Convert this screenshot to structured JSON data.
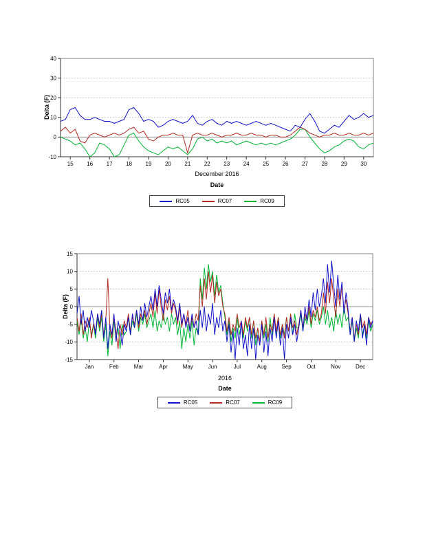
{
  "page": {
    "background": "#ffffff"
  },
  "chart_data": [
    {
      "type": "line",
      "title": "",
      "ylabel": "Delta (F)",
      "xlabel": "Date",
      "x_sublabel": "December 2016",
      "ylim": [
        -10,
        40
      ],
      "yticks": [
        40,
        30,
        20,
        10,
        0,
        -10
      ],
      "xlim": [
        14.5,
        30.5
      ],
      "xtick_values": [
        15,
        16,
        17,
        18,
        19,
        20,
        21,
        22,
        23,
        24,
        25,
        26,
        27,
        28,
        29,
        30
      ],
      "xtick_labels": [
        "15",
        "16",
        "17",
        "18",
        "19",
        "20",
        "21",
        "22",
        "23",
        "24",
        "25",
        "26",
        "27",
        "28",
        "29",
        "30"
      ],
      "grid": "horizontal-dashed",
      "legend_position": "bottom",
      "series": [
        {
          "name": "RC05",
          "color": "#1212c8",
          "x0": 14.5,
          "dx": 0.25,
          "y": [
            8,
            9,
            14,
            15,
            11,
            9,
            9,
            10,
            9,
            8,
            8,
            7,
            8,
            9,
            14,
            15,
            12,
            8,
            9,
            8,
            5,
            6,
            8,
            9,
            8,
            7,
            8,
            11,
            7,
            6,
            8,
            9,
            7,
            6,
            8,
            7,
            8,
            7,
            6,
            7,
            8,
            7,
            6,
            7,
            6,
            5,
            4,
            3,
            6,
            5,
            9,
            12,
            8,
            3,
            2,
            4,
            6,
            5,
            8,
            11,
            9,
            10,
            12,
            10,
            11
          ]
        },
        {
          "name": "RC07",
          "color": "#b22a22",
          "x0": 14.5,
          "dx": 0.25,
          "y": [
            3,
            5,
            2,
            4,
            -2,
            -3,
            1,
            2,
            1,
            0,
            1,
            2,
            1,
            2,
            4,
            5,
            2,
            3,
            -1,
            -2,
            0,
            1,
            1,
            2,
            1,
            1,
            -8,
            1,
            2,
            1,
            1,
            2,
            1,
            0,
            1,
            1,
            2,
            1,
            1,
            2,
            1,
            1,
            0,
            1,
            1,
            0,
            0,
            1,
            3,
            5,
            4,
            2,
            1,
            0,
            1,
            1,
            2,
            1,
            1,
            2,
            1,
            1,
            2,
            1,
            2
          ]
        },
        {
          "name": "RC09",
          "color": "#00b432",
          "x0": 14.5,
          "dx": 0.25,
          "y": [
            0,
            -1,
            -2,
            -4,
            -3,
            -6,
            -10,
            -8,
            -3,
            -4,
            -6,
            -10,
            -9,
            -4,
            1,
            2,
            -2,
            -5,
            -7,
            -8,
            -9,
            -7,
            -5,
            -6,
            -5,
            -7,
            -9,
            -6,
            -1,
            0,
            -2,
            -1,
            -3,
            -2,
            -3,
            -2,
            -4,
            -3,
            -2,
            -3,
            -4,
            -3,
            -4,
            -3,
            -4,
            -3,
            -2,
            -1,
            1,
            4,
            4,
            0,
            -3,
            -6,
            -8,
            -7,
            -5,
            -4,
            -2,
            -1,
            -2,
            -5,
            -6,
            -4,
            -3
          ]
        }
      ]
    },
    {
      "type": "line",
      "title": "",
      "ylabel": "Delta (F)",
      "xlabel": "Date",
      "x_sublabel": "2016",
      "ylim": [
        -15,
        15
      ],
      "yticks": [
        15,
        10,
        5,
        0,
        -5,
        -10,
        -15
      ],
      "xlim": [
        0,
        12
      ],
      "xtick_values": [
        0.5,
        1.5,
        2.5,
        3.5,
        4.5,
        5.5,
        6.5,
        7.5,
        8.5,
        9.5,
        10.5,
        11.5
      ],
      "xtick_labels": [
        "Jan",
        "Feb",
        "Mar",
        "Apr",
        "May",
        "Jun",
        "Jul",
        "Aug",
        "Sep",
        "Oct",
        "Nov",
        "Dec"
      ],
      "grid": "horizontal-dashed",
      "legend_position": "bottom",
      "series": [
        {
          "name": "RC05",
          "color": "#1212c8",
          "x0": 0,
          "dx": 0.0833333,
          "y": [
            -2,
            3,
            -5,
            -1,
            -7,
            -3,
            -6,
            -1,
            -4,
            -8,
            -2,
            -5,
            -1,
            -9,
            -3,
            -12,
            -5,
            -8,
            -2,
            -10,
            -4,
            -7,
            -11,
            -5,
            -7,
            -3,
            -8,
            -2,
            -6,
            -1,
            -5,
            0,
            -4,
            1,
            -3,
            0,
            3,
            -1,
            5,
            0,
            6,
            2,
            -2,
            4,
            1,
            5,
            -1,
            2,
            0,
            -4,
            1,
            -5,
            -2,
            -6,
            -3,
            -7,
            -2,
            -6,
            -4,
            -8,
            -1,
            -6,
            0,
            -7,
            -2,
            -5,
            1,
            -8,
            -3,
            -6,
            -1,
            -7,
            -4,
            -10,
            -5,
            -13,
            -7,
            -15,
            -6,
            -11,
            -4,
            -12,
            -8,
            -14,
            -5,
            -12,
            -6,
            -15,
            -8,
            -11,
            -5,
            -13,
            -7,
            -14,
            -6,
            -10,
            -3,
            -9,
            -4,
            -11,
            -6,
            -15,
            -5,
            -9,
            -3,
            -8,
            -5,
            -10,
            -6,
            -1,
            -7,
            0,
            -4,
            2,
            -3,
            4,
            -1,
            5,
            0,
            3,
            8,
            1,
            12,
            4,
            13,
            6,
            0,
            9,
            2,
            7,
            -2,
            4,
            -1,
            -8,
            -3,
            -10,
            -4,
            -7,
            -2,
            -9,
            -5,
            -11,
            -3,
            -6,
            -4
          ]
        },
        {
          "name": "RC07",
          "color": "#b22a22",
          "x0": 0,
          "dx": 0.0833333,
          "y": [
            -3,
            -7,
            -2,
            -8,
            -4,
            -6,
            -3,
            -9,
            -5,
            -7,
            -2,
            -6,
            -2,
            -8,
            -4,
            8,
            -6,
            -9,
            -3,
            -7,
            -12,
            -5,
            -8,
            -4,
            -6,
            -2,
            -7,
            -3,
            -5,
            -1,
            -6,
            -2,
            -4,
            -1,
            -5,
            -2,
            1,
            -3,
            4,
            -2,
            5,
            0,
            -4,
            2,
            -1,
            3,
            -2,
            1,
            -1,
            -5,
            0,
            -6,
            -2,
            -5,
            -1,
            -7,
            -3,
            -6,
            -2,
            -4,
            6,
            0,
            8,
            2,
            10,
            4,
            9,
            1,
            7,
            3,
            5,
            0,
            -2,
            -7,
            -3,
            -8,
            -5,
            -7,
            -2,
            -6,
            -4,
            -8,
            -3,
            -6,
            -3,
            -8,
            -4,
            -9,
            -6,
            -10,
            -4,
            -8,
            -3,
            -9,
            -5,
            -7,
            -2,
            -7,
            -3,
            -8,
            -5,
            -9,
            -3,
            -7,
            -2,
            -6,
            -4,
            -8,
            -5,
            -1,
            -6,
            -2,
            -4,
            0,
            -5,
            -1,
            -3,
            0,
            -4,
            -2,
            4,
            -2,
            7,
            1,
            8,
            2,
            -3,
            5,
            0,
            6,
            -1,
            2,
            -2,
            -7,
            -3,
            -9,
            -5,
            -8,
            -2,
            -6,
            -4,
            -8,
            -3,
            -5,
            -4
          ]
        },
        {
          "name": "RC09",
          "color": "#00b432",
          "x0": 0,
          "dx": 0.0833333,
          "y": [
            -4,
            -8,
            -3,
            -9,
            -6,
            -10,
            -4,
            -8,
            -5,
            -9,
            -3,
            -7,
            -3,
            -10,
            -5,
            -14,
            -7,
            -11,
            -4,
            -9,
            -6,
            -12,
            -5,
            -8,
            -7,
            -3,
            -8,
            -4,
            -6,
            -2,
            -7,
            -3,
            -5,
            -2,
            -6,
            -4,
            -2,
            -6,
            -1,
            -7,
            -4,
            -6,
            -2,
            -5,
            -3,
            -7,
            -2,
            -5,
            -3,
            -8,
            -4,
            -12,
            -6,
            -10,
            -5,
            -9,
            -4,
            -11,
            -6,
            -8,
            8,
            2,
            11,
            5,
            12,
            7,
            10,
            3,
            9,
            4,
            6,
            1,
            -3,
            -8,
            -4,
            -10,
            -6,
            -9,
            -3,
            -8,
            -5,
            -9,
            -4,
            -7,
            -3,
            -9,
            -4,
            -11,
            -6,
            -10,
            -4,
            -9,
            -5,
            -10,
            -3,
            -8,
            -2,
            -8,
            -3,
            -9,
            -5,
            -8,
            -3,
            -7,
            -4,
            -8,
            -2,
            -6,
            -6,
            -2,
            -7,
            -3,
            -5,
            -1,
            -6,
            -2,
            -4,
            -1,
            -5,
            -3,
            0,
            -5,
            -1,
            -6,
            -3,
            -7,
            -1,
            -5,
            -2,
            -6,
            0,
            -4,
            -3,
            -8,
            -4,
            -10,
            -6,
            -9,
            -3,
            -8,
            -5,
            -9,
            -4,
            -7,
            -5
          ]
        }
      ]
    }
  ]
}
